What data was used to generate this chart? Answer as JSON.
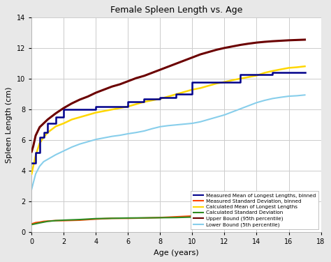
{
  "title": "Female Spleen Length vs. Age",
  "xlabel": "Age (years)",
  "ylabel": "Spleen Length (cm)",
  "xlim": [
    0,
    18
  ],
  "ylim": [
    0,
    14
  ],
  "xticks": [
    0,
    2,
    4,
    6,
    8,
    10,
    12,
    14,
    16,
    18
  ],
  "yticks": [
    0,
    2,
    4,
    6,
    8,
    10,
    12,
    14
  ],
  "fig_facecolor": "#e8e8e8",
  "ax_facecolor": "#ffffff",
  "measured_mean_binned_color": "#00008B",
  "measured_std_binned_color": "#FF4500",
  "calc_mean_color": "#FFD700",
  "calc_std_color": "#2E8B22",
  "upper_bound_color": "#6B0000",
  "lower_bound_color": "#87CEEB",
  "measured_mean_binned": {
    "x": [
      0.05,
      0.25,
      0.25,
      0.5,
      0.5,
      0.75,
      0.75,
      1.0,
      1.0,
      1.5,
      1.5,
      2.0,
      2.0,
      3.0,
      3.0,
      4.0,
      4.0,
      5.0,
      5.0,
      6.0,
      6.0,
      7.0,
      7.0,
      8.0,
      8.0,
      9.0,
      9.0,
      10.0,
      10.0,
      11.0,
      11.0,
      12.0,
      12.0,
      13.0,
      13.0,
      14.0,
      14.0,
      15.0,
      15.0,
      17.0
    ],
    "y": [
      4.5,
      4.5,
      5.2,
      5.2,
      6.2,
      6.2,
      6.5,
      6.5,
      7.1,
      7.1,
      7.5,
      7.5,
      8.0,
      8.0,
      8.0,
      8.0,
      8.2,
      8.2,
      8.2,
      8.2,
      8.5,
      8.5,
      8.7,
      8.7,
      8.8,
      8.8,
      9.0,
      9.0,
      9.8,
      9.8,
      9.8,
      9.8,
      9.8,
      9.8,
      10.3,
      10.3,
      10.3,
      10.3,
      10.4,
      10.4
    ]
  },
  "measured_std_binned": {
    "x": [
      0.05,
      0.25,
      0.5,
      0.75,
      1.0,
      1.5,
      2.0,
      3.0,
      4.0,
      5.0,
      6.0,
      7.0,
      8.0,
      9.0,
      10.0,
      11.0,
      12.0,
      13.0,
      14.0,
      15.0,
      17.0
    ],
    "y": [
      0.55,
      0.62,
      0.65,
      0.7,
      0.72,
      0.75,
      0.75,
      0.78,
      0.85,
      0.9,
      0.9,
      0.92,
      0.95,
      1.0,
      1.05,
      1.05,
      1.0,
      1.0,
      0.82,
      0.9,
      0.85
    ]
  },
  "calc_mean": {
    "x": [
      0.0,
      0.25,
      0.5,
      0.75,
      1.0,
      1.5,
      2.0,
      2.5,
      3.0,
      3.5,
      4.0,
      4.5,
      5.0,
      5.5,
      6.0,
      6.5,
      7.0,
      7.5,
      8.0,
      8.5,
      9.0,
      9.5,
      10.0,
      10.5,
      11.0,
      11.5,
      12.0,
      12.5,
      13.0,
      13.5,
      14.0,
      14.5,
      15.0,
      15.5,
      16.0,
      16.5,
      17.0
    ],
    "y": [
      3.8,
      5.0,
      5.8,
      6.2,
      6.5,
      6.9,
      7.1,
      7.35,
      7.5,
      7.65,
      7.8,
      7.9,
      8.0,
      8.1,
      8.2,
      8.35,
      8.5,
      8.6,
      8.7,
      8.85,
      9.0,
      9.15,
      9.3,
      9.4,
      9.55,
      9.7,
      9.8,
      9.92,
      10.02,
      10.12,
      10.22,
      10.4,
      10.52,
      10.62,
      10.72,
      10.76,
      10.82
    ]
  },
  "calc_std": {
    "x": [
      0.05,
      0.5,
      1.0,
      1.5,
      2.0,
      3.0,
      4.0,
      5.0,
      6.0,
      7.0,
      8.0,
      9.0,
      10.0,
      11.0,
      12.0,
      13.0,
      14.0,
      15.0,
      16.0,
      17.0
    ],
    "y": [
      0.5,
      0.6,
      0.7,
      0.75,
      0.78,
      0.82,
      0.88,
      0.9,
      0.92,
      0.93,
      0.94,
      0.95,
      0.98,
      0.98,
      0.97,
      0.95,
      0.92,
      0.9,
      0.9,
      0.9
    ]
  },
  "upper_bound": {
    "x": [
      0.0,
      0.1,
      0.25,
      0.5,
      0.75,
      1.0,
      1.5,
      2.0,
      2.5,
      3.0,
      3.5,
      4.0,
      4.5,
      5.0,
      5.5,
      6.0,
      6.5,
      7.0,
      7.5,
      8.0,
      8.5,
      9.0,
      9.5,
      10.0,
      10.5,
      11.0,
      11.5,
      12.0,
      12.5,
      13.0,
      13.5,
      14.0,
      14.5,
      15.0,
      15.5,
      16.0,
      16.5,
      17.0
    ],
    "y": [
      5.25,
      5.6,
      6.3,
      6.85,
      7.1,
      7.35,
      7.75,
      8.1,
      8.4,
      8.65,
      8.85,
      9.1,
      9.3,
      9.5,
      9.65,
      9.85,
      10.05,
      10.2,
      10.4,
      10.6,
      10.8,
      11.0,
      11.2,
      11.4,
      11.6,
      11.75,
      11.9,
      12.02,
      12.12,
      12.22,
      12.3,
      12.37,
      12.42,
      12.46,
      12.49,
      12.52,
      12.54,
      12.56
    ]
  },
  "lower_bound": {
    "x": [
      0.0,
      0.1,
      0.25,
      0.5,
      0.75,
      1.0,
      1.5,
      2.0,
      2.5,
      3.0,
      3.5,
      4.0,
      4.5,
      5.0,
      5.5,
      6.0,
      6.5,
      7.0,
      7.5,
      8.0,
      8.5,
      9.0,
      9.5,
      10.0,
      10.5,
      11.0,
      11.5,
      12.0,
      12.5,
      13.0,
      13.5,
      14.0,
      14.5,
      15.0,
      15.5,
      16.0,
      16.5,
      17.0
    ],
    "y": [
      2.8,
      3.2,
      3.8,
      4.3,
      4.6,
      4.75,
      5.05,
      5.3,
      5.55,
      5.75,
      5.9,
      6.05,
      6.15,
      6.25,
      6.32,
      6.42,
      6.5,
      6.6,
      6.75,
      6.88,
      6.95,
      7.0,
      7.05,
      7.1,
      7.2,
      7.35,
      7.5,
      7.65,
      7.85,
      8.05,
      8.25,
      8.45,
      8.6,
      8.72,
      8.8,
      8.87,
      8.9,
      8.95
    ]
  },
  "legend_labels": [
    "Measured Mean of Longest Lengths, binned",
    "Measured Standard Deviation, binned",
    "Calculated Mean of Longest Lengths",
    "Calculated Standard Deviation",
    "Upper Bound (95th percentile)",
    "Lower Bound (5th percentile)"
  ],
  "legend_colors": [
    "#00008B",
    "#FF4500",
    "#FFD700",
    "#2E8B22",
    "#6B0000",
    "#87CEEB"
  ]
}
